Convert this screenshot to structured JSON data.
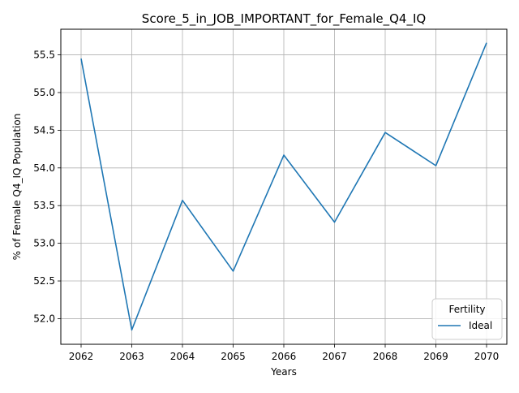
{
  "chart_data": {
    "type": "line",
    "title": "Score_5_in_JOB_IMPORTANT_for_Female_Q4_IQ",
    "xlabel": "Years",
    "ylabel": "% of Female Q4_IQ Population",
    "x": [
      2062,
      2063,
      2064,
      2065,
      2066,
      2067,
      2068,
      2069,
      2070
    ],
    "xlim": [
      2061.6,
      2070.4
    ],
    "ylim": [
      51.66,
      55.84
    ],
    "x_ticks": [
      2062,
      2063,
      2064,
      2065,
      2066,
      2067,
      2068,
      2069,
      2070
    ],
    "y_ticks": [
      52.0,
      52.5,
      53.0,
      53.5,
      54.0,
      54.5,
      55.0,
      55.5
    ],
    "series": [
      {
        "name": "Ideal",
        "color": "#1f77b4",
        "values": [
          55.45,
          51.85,
          53.57,
          52.63,
          54.17,
          53.28,
          54.47,
          54.03,
          55.66
        ]
      }
    ],
    "grid": true,
    "legend": {
      "title": "Fertility",
      "placement": "lower right"
    }
  }
}
